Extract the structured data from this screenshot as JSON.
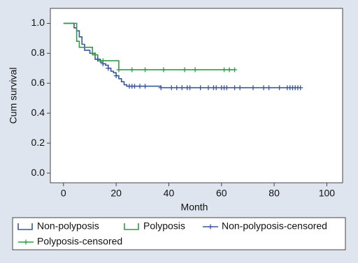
{
  "chart_data": {
    "type": "line",
    "xlabel": "Month",
    "ylabel": "Cum survival",
    "xlim": [
      -5,
      106
    ],
    "ylim": [
      -0.065,
      1.1
    ],
    "xticks": [
      0,
      20,
      40,
      60,
      80,
      100
    ],
    "yticks": [
      {
        "value": 0,
        "label": "0.0"
      },
      {
        "value": 0.2,
        "label": "0.2"
      },
      {
        "value": 0.4,
        "label": "0.4"
      },
      {
        "value": 0.6,
        "label": "0.6"
      },
      {
        "value": 0.8,
        "label": "0.8"
      },
      {
        "value": 1,
        "label": "1.0"
      }
    ],
    "series": [
      {
        "name": "Non-polyposis",
        "color": "#3a55a0",
        "drawstyle": "steps-post",
        "x": [
          0,
          4,
          5,
          6,
          7,
          8,
          10,
          12,
          14,
          15,
          16,
          17,
          18,
          19,
          20,
          21,
          22,
          23,
          24,
          37,
          90
        ],
        "values": [
          1.0,
          0.97,
          0.95,
          0.91,
          0.86,
          0.82,
          0.8,
          0.76,
          0.74,
          0.73,
          0.72,
          0.7,
          0.68,
          0.67,
          0.65,
          0.63,
          0.61,
          0.59,
          0.58,
          0.57,
          0.57
        ]
      },
      {
        "name": "Polyposis",
        "color": "#2e9e44",
        "drawstyle": "steps-post",
        "x": [
          0,
          5,
          6,
          11,
          13,
          21,
          65
        ],
        "values": [
          1.0,
          0.88,
          0.84,
          0.79,
          0.75,
          0.69,
          0.69
        ]
      },
      {
        "name": "Non-polyposis-censored",
        "color": "#3a55a0",
        "marker": "+",
        "x": [
          13,
          15,
          17,
          20,
          25,
          26,
          27,
          29,
          31,
          37,
          41,
          43,
          45,
          47,
          48,
          52,
          55,
          57,
          58,
          60,
          61,
          62,
          65,
          67,
          72,
          76,
          78,
          82,
          85,
          86,
          87,
          88,
          89,
          90
        ],
        "values": [
          0.76,
          0.73,
          0.7,
          0.65,
          0.58,
          0.58,
          0.58,
          0.58,
          0.58,
          0.57,
          0.57,
          0.57,
          0.57,
          0.57,
          0.57,
          0.57,
          0.57,
          0.57,
          0.57,
          0.57,
          0.57,
          0.57,
          0.57,
          0.57,
          0.57,
          0.57,
          0.57,
          0.57,
          0.57,
          0.57,
          0.57,
          0.57,
          0.57,
          0.57
        ]
      },
      {
        "name": "Polyposis-censored",
        "color": "#2e9e44",
        "marker": "+",
        "x": [
          12,
          15,
          21,
          26,
          31,
          38,
          46,
          50,
          61,
          63,
          65
        ],
        "values": [
          0.79,
          0.75,
          0.69,
          0.69,
          0.69,
          0.69,
          0.69,
          0.69,
          0.69,
          0.69,
          0.69
        ]
      }
    ]
  }
}
